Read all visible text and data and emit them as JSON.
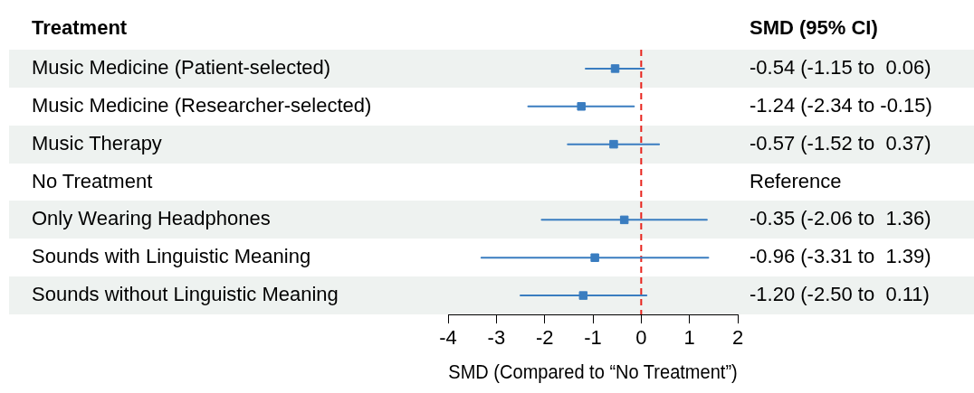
{
  "chart_data": {
    "type": "scatter",
    "orientation": "horizontal",
    "ylabel": "Treatment",
    "xlabel": "SMD (Compared to “No Treatment”)",
    "annotations": [
      "SMD (95% CI)"
    ],
    "categories": [
      "Music Medicine (Patient-selected)",
      "Music Medicine (Researcher-selected)",
      "Music Therapy",
      "No Treatment",
      "Only Wearing Headphones",
      "Sounds with Linguistic Meaning",
      "Sounds without Linguistic Meaning"
    ],
    "values": [
      -0.54,
      -1.24,
      -0.57,
      null,
      -0.35,
      -0.96,
      -1.2
    ],
    "errors": [
      [
        -1.15,
        0.06
      ],
      [
        -2.34,
        -0.15
      ],
      [
        -1.52,
        0.37
      ],
      null,
      [
        -2.06,
        1.36
      ],
      [
        -3.31,
        1.39
      ],
      [
        -2.5,
        0.11
      ]
    ],
    "value_labels": [
      "-0.54 (-1.15 to  0.06)",
      "-1.24 (-2.34 to -0.15)",
      "-0.57 (-1.52 to  0.37)",
      "Reference",
      "-0.35 (-2.06 to  1.36)",
      "-0.96 (-3.31 to  1.39)",
      "-1.20 (-2.50 to  0.11)"
    ],
    "color": "#3a7dc0",
    "marker": "square",
    "xlim": [
      -4,
      2
    ],
    "xticks": [
      -4,
      -3,
      -2,
      -1,
      0,
      1,
      2
    ],
    "ref_lines": [
      {
        "axis": "x",
        "value": 0,
        "color": "#e8231c",
        "line_style": "dashed"
      }
    ]
  }
}
